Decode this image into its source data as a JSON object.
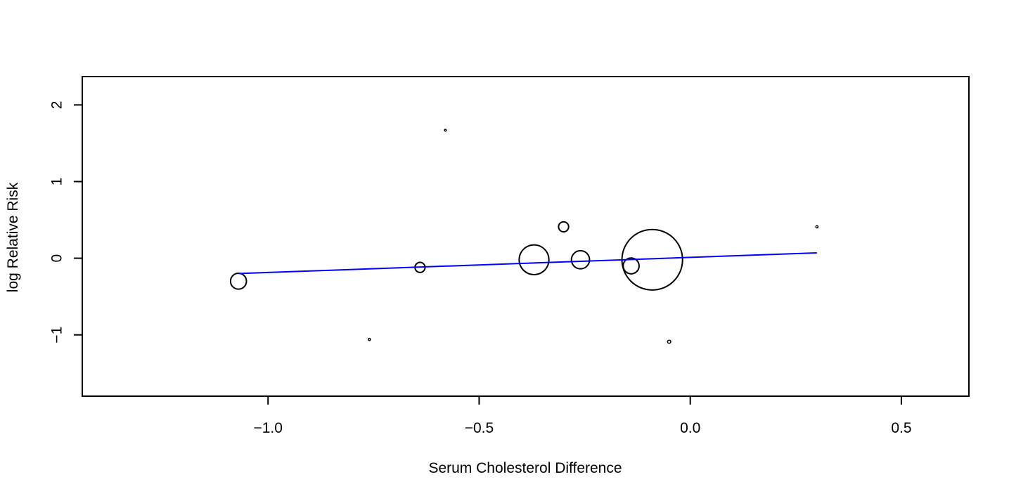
{
  "chart_data": {
    "type": "scatter",
    "title": "",
    "xlabel": "Serum Cholesterol Difference",
    "ylabel": "log Relative Risk",
    "xlim": [
      -1.44,
      0.66
    ],
    "ylim": [
      -1.8,
      2.37
    ],
    "xticks": [
      -1.0,
      -0.5,
      0.0,
      0.5
    ],
    "xtick_labels": [
      "−1.0",
      "−0.5",
      "0.0",
      "0.5"
    ],
    "yticks": [
      -1,
      0,
      1,
      2
    ],
    "ytick_labels": [
      "−1",
      "0",
      "1",
      "2"
    ],
    "grid": false,
    "legend": "none",
    "points": [
      {
        "x": -1.07,
        "y": -0.3,
        "weight": 0.02
      },
      {
        "x": -0.76,
        "y": -1.06,
        "weight": 0.0004
      },
      {
        "x": -0.64,
        "y": -0.12,
        "weight": 0.008
      },
      {
        "x": -0.58,
        "y": 1.67,
        "weight": 0.0002
      },
      {
        "x": -0.37,
        "y": -0.02,
        "weight": 0.07
      },
      {
        "x": -0.3,
        "y": 0.41,
        "weight": 0.008
      },
      {
        "x": -0.26,
        "y": -0.02,
        "weight": 0.026
      },
      {
        "x": -0.14,
        "y": -0.1,
        "weight": 0.02
      },
      {
        "x": -0.09,
        "y": -0.02,
        "weight": 0.29
      },
      {
        "x": -0.05,
        "y": -1.09,
        "weight": 0.0008
      },
      {
        "x": 0.3,
        "y": 0.41,
        "weight": 0.0004
      }
    ],
    "fit_line": {
      "x": [
        -1.07,
        0.3
      ],
      "y": [
        -0.2,
        0.07
      ]
    },
    "colors": {
      "points": "#000000",
      "fit_line": "#0000ff",
      "frame": "#000000"
    }
  }
}
